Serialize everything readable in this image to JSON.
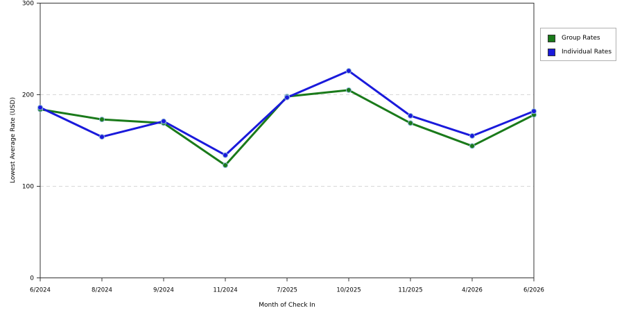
{
  "chart_data": {
    "type": "line",
    "title": "",
    "xlabel": "Month of Check In",
    "ylabel": "Lowest Average Rate (USD)",
    "categories": [
      "6/2024",
      "8/2024",
      "9/2024",
      "11/2024",
      "7/2025",
      "10/2025",
      "11/2025",
      "4/2026",
      "6/2026"
    ],
    "ylim": [
      0,
      300
    ],
    "yticks": [
      0,
      100,
      200,
      300
    ],
    "grid": true,
    "legend_position": "right",
    "series": [
      {
        "name": "Group Rates",
        "color": "#1a7a1a",
        "values": [
          184,
          173,
          169,
          123,
          198,
          205,
          169,
          144,
          178
        ]
      },
      {
        "name": "Individual Rates",
        "color": "#1a1adb",
        "values": [
          186,
          154,
          171,
          134,
          197,
          226,
          177,
          155,
          182
        ]
      }
    ]
  }
}
